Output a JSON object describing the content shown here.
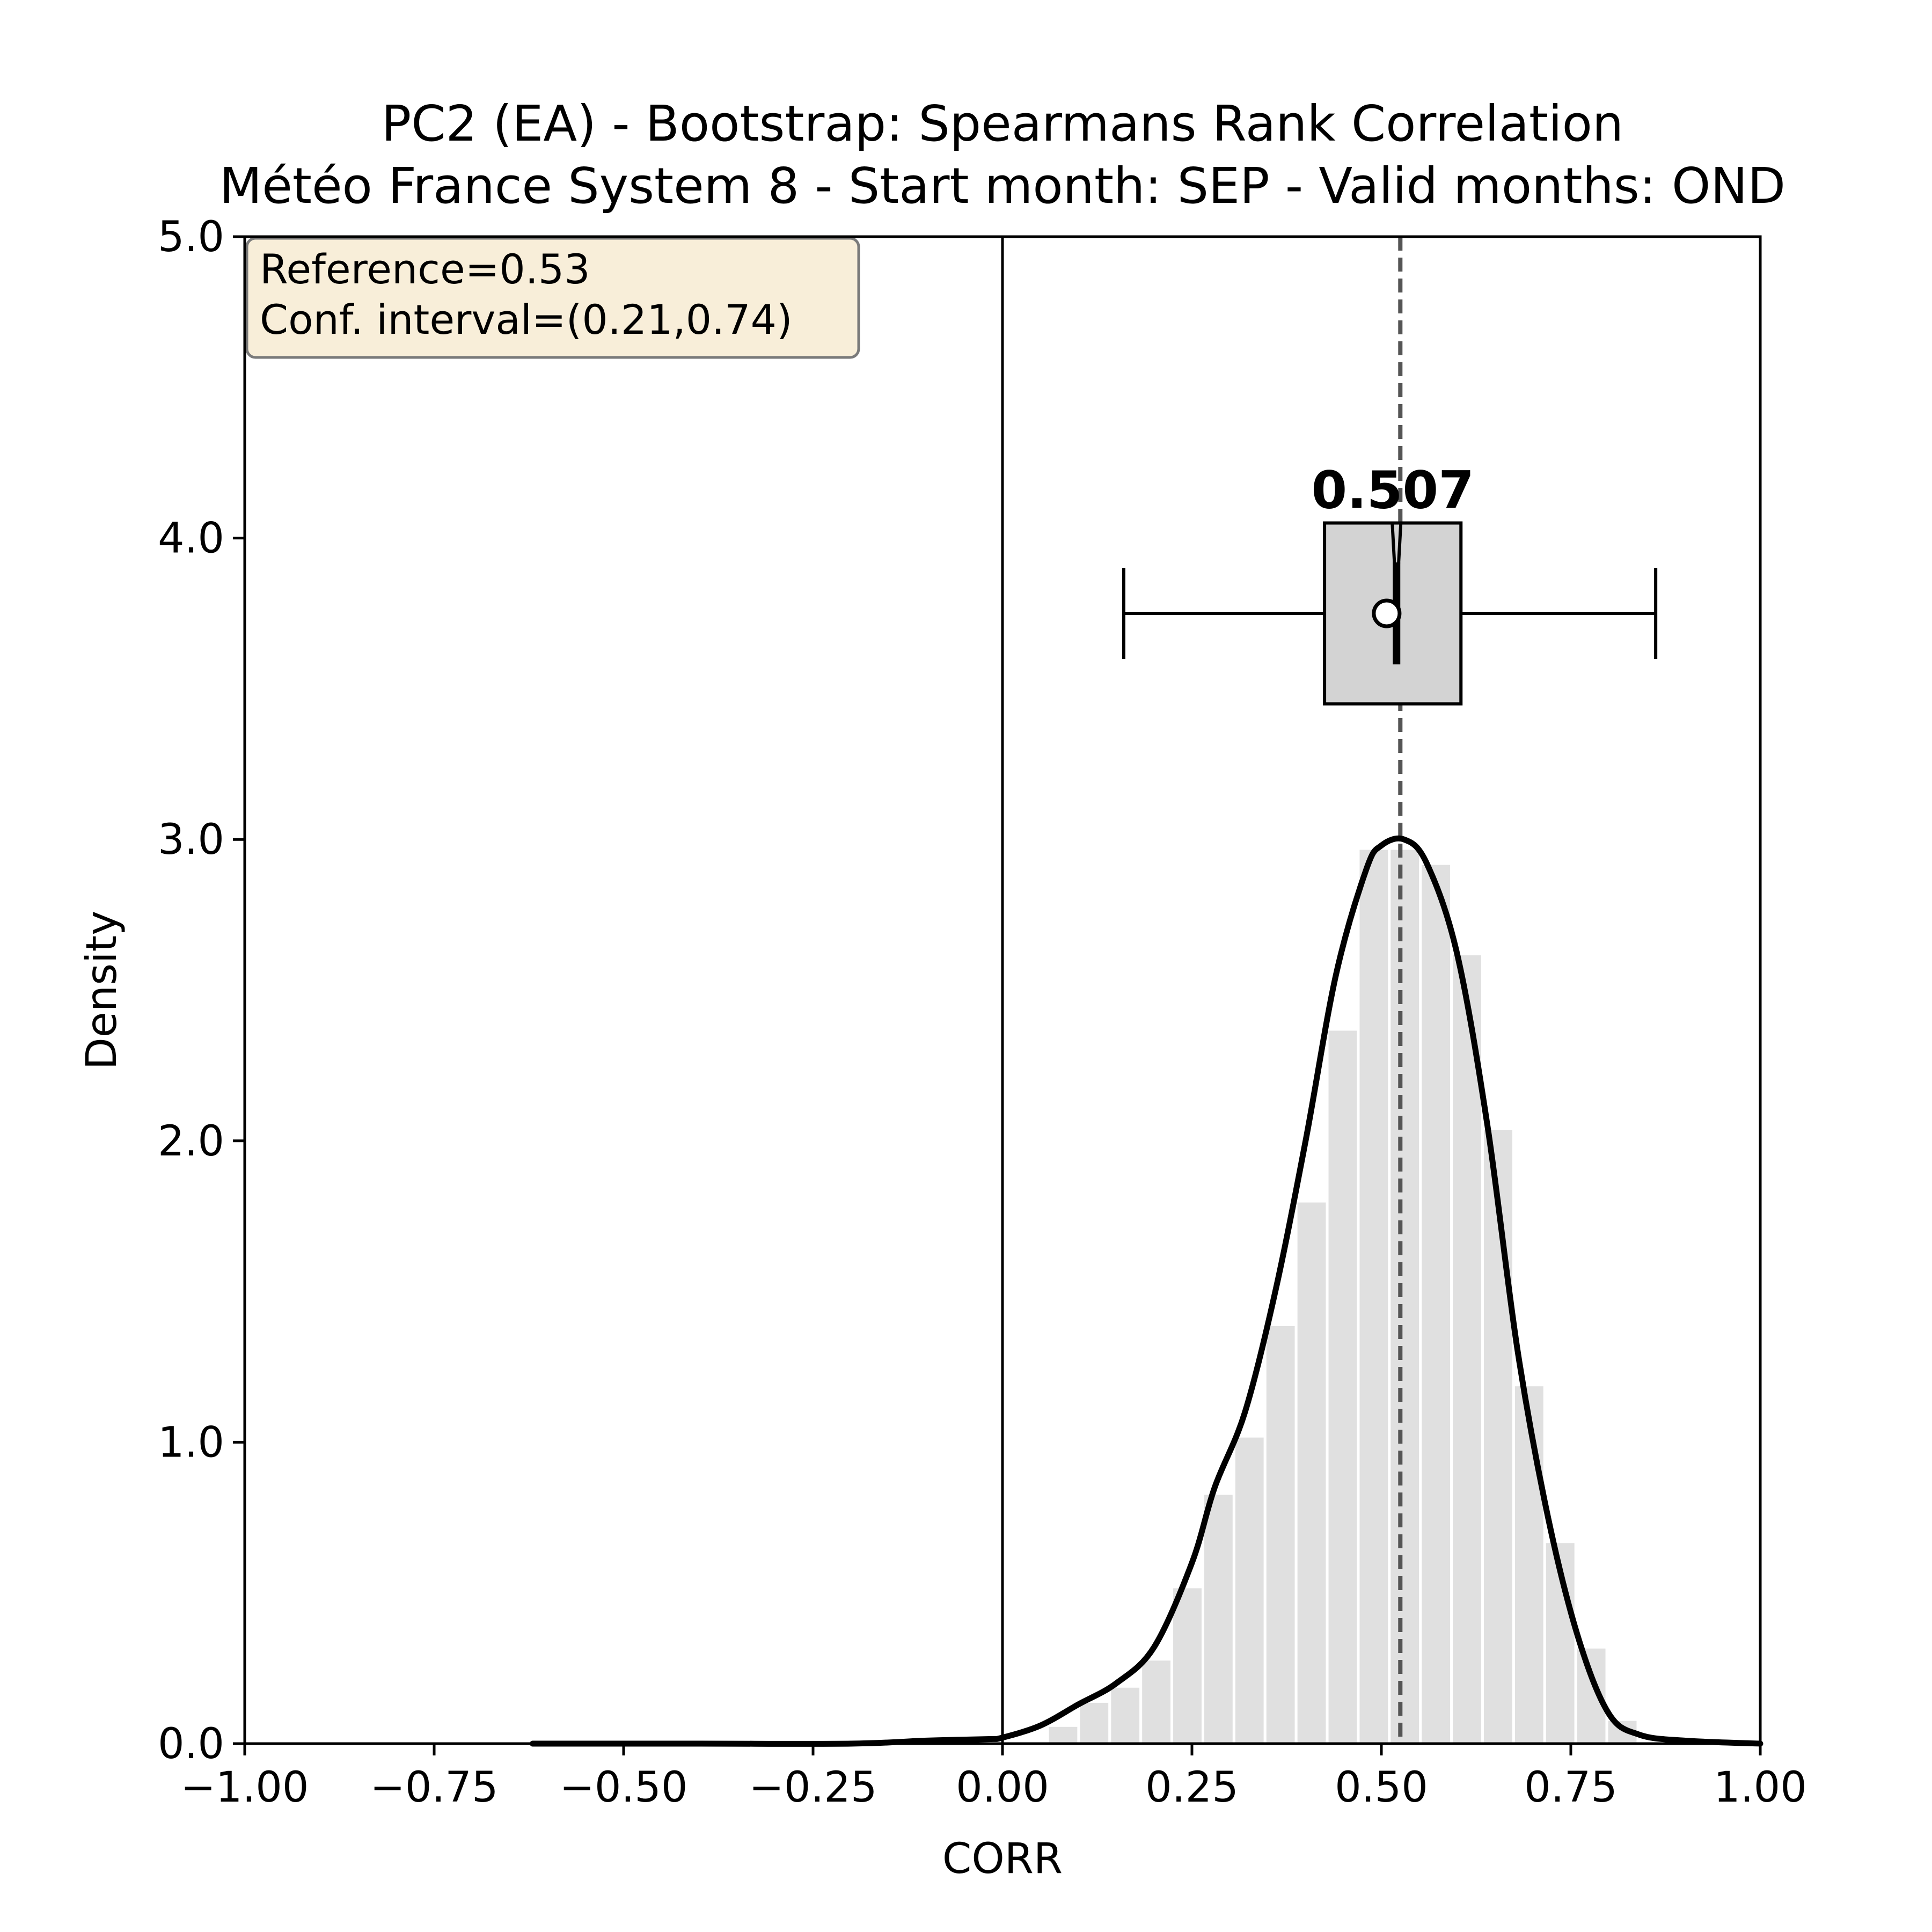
{
  "chart_data": {
    "type": "histogram",
    "title": "PC2 (EA) - Bootstrap: Spearmans Rank Correlation",
    "subtitle": "Météo France System 8 - Start month: SEP - Valid months: OND",
    "xlabel": "CORR",
    "ylabel": "Density",
    "xlim": [
      -1.0,
      1.0
    ],
    "ylim": [
      0.0,
      5.0
    ],
    "xticks": [
      "−1.00",
      "−0.75",
      "−0.50",
      "−0.25",
      "0.00",
      "0.25",
      "0.50",
      "0.75",
      "1.00"
    ],
    "xtick_values": [
      -1.0,
      -0.75,
      -0.5,
      -0.25,
      0.0,
      0.25,
      0.5,
      0.75,
      1.0
    ],
    "yticks": [
      "0.0",
      "1.0",
      "2.0",
      "3.0",
      "4.0",
      "5.0"
    ],
    "ytick_values": [
      0,
      1,
      2,
      3,
      4,
      5
    ],
    "histogram": {
      "bin_centers": [
        0.08,
        0.121,
        0.162,
        0.203,
        0.244,
        0.285,
        0.326,
        0.367,
        0.408,
        0.449,
        0.49,
        0.531,
        0.572,
        0.613,
        0.654,
        0.695,
        0.736,
        0.777,
        0.818
      ],
      "density": [
        0.06,
        0.14,
        0.19,
        0.28,
        0.52,
        0.83,
        1.02,
        1.39,
        1.8,
        2.37,
        2.97,
        2.97,
        2.92,
        2.62,
        2.04,
        1.19,
        0.67,
        0.32,
        0.08
      ],
      "color": "#e0e0e0"
    },
    "kde": {
      "x": [
        -0.62,
        -0.4,
        -0.2,
        -0.1,
        -0.02,
        0.0,
        0.05,
        0.1,
        0.15,
        0.2,
        0.25,
        0.28,
        0.32,
        0.36,
        0.4,
        0.44,
        0.48,
        0.5,
        0.53,
        0.56,
        0.6,
        0.64,
        0.68,
        0.72,
        0.76,
        0.8,
        0.84,
        0.9,
        1.0
      ],
      "y": [
        0.0,
        0.0,
        0.0,
        0.01,
        0.015,
        0.02,
        0.06,
        0.13,
        0.2,
        0.32,
        0.6,
        0.85,
        1.1,
        1.5,
        2.0,
        2.55,
        2.9,
        2.98,
        3.0,
        2.92,
        2.62,
        2.05,
        1.3,
        0.75,
        0.35,
        0.1,
        0.03,
        0.01,
        0.0
      ],
      "color": "#000000"
    },
    "zero_line": 0.0,
    "reference_line": 0.525,
    "boxplot": {
      "median_label": "0.507",
      "whisker_low": 0.16,
      "q1": 0.425,
      "median": 0.52,
      "q3": 0.605,
      "whisker_high": 0.862,
      "mean": 0.507,
      "y_center": 3.75,
      "y_bottom": 3.45,
      "y_top": 4.05,
      "box_color": "#d3d3d3"
    },
    "annotation": {
      "line1": "Reference=0.53",
      "line2": "Conf. interval=(0.21,0.74)",
      "placement": "top-left",
      "background": "#f8eed9"
    }
  }
}
